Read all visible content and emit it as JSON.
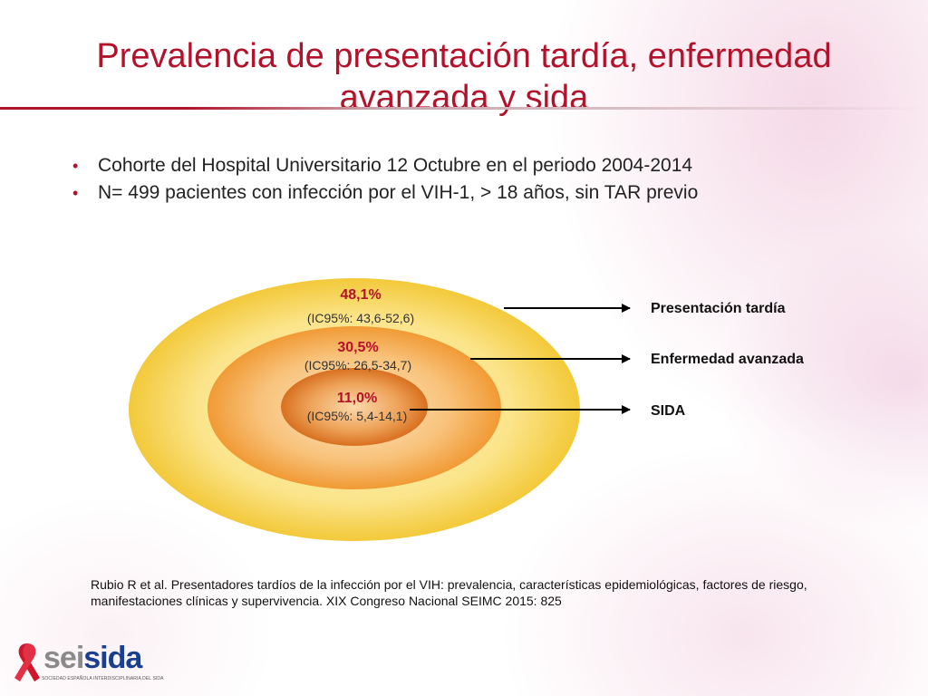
{
  "title": "Prevalencia de presentación tardía, enfermedad avanzada y sida",
  "bullets": [
    "Cohorte del Hospital Universitario 12 Octubre en el periodo 2004-2014",
    "N= 499 pacientes con infección por el VIH-1, > 18 años, sin TAR previo"
  ],
  "diagram": {
    "rings": [
      {
        "value": "48,1%",
        "ci": "(IC95%: 43,6-52,6)",
        "label": "Presentación tardía"
      },
      {
        "value": "30,5%",
        "ci": "(IC95%: 26,5-34,7)",
        "label": "Enfermedad avanzada"
      },
      {
        "value": "11,0%",
        "ci": "(IC95%: 5,4-14,1)",
        "label": "SIDA"
      }
    ],
    "colors": {
      "outer": "#f7d24f",
      "middle": "#f3a23f",
      "inner": "#e07a28",
      "accent": "#b3122a"
    }
  },
  "citation": "Rubio R et al. Presentadores tardíos de la infección por el VIH: prevalencia, características epidemiológicas, factores de riesgo, manifestaciones clínicas y supervivencia. XIX Congreso Nacional SEIMC 2015: 825",
  "logo": {
    "part1": "sei",
    "part2": "sida",
    "subtitle": "SOCIEDAD ESPAÑOLA INTERDISCIPLINARIA DEL SIDA",
    "icon": "red-ribbon-icon"
  }
}
